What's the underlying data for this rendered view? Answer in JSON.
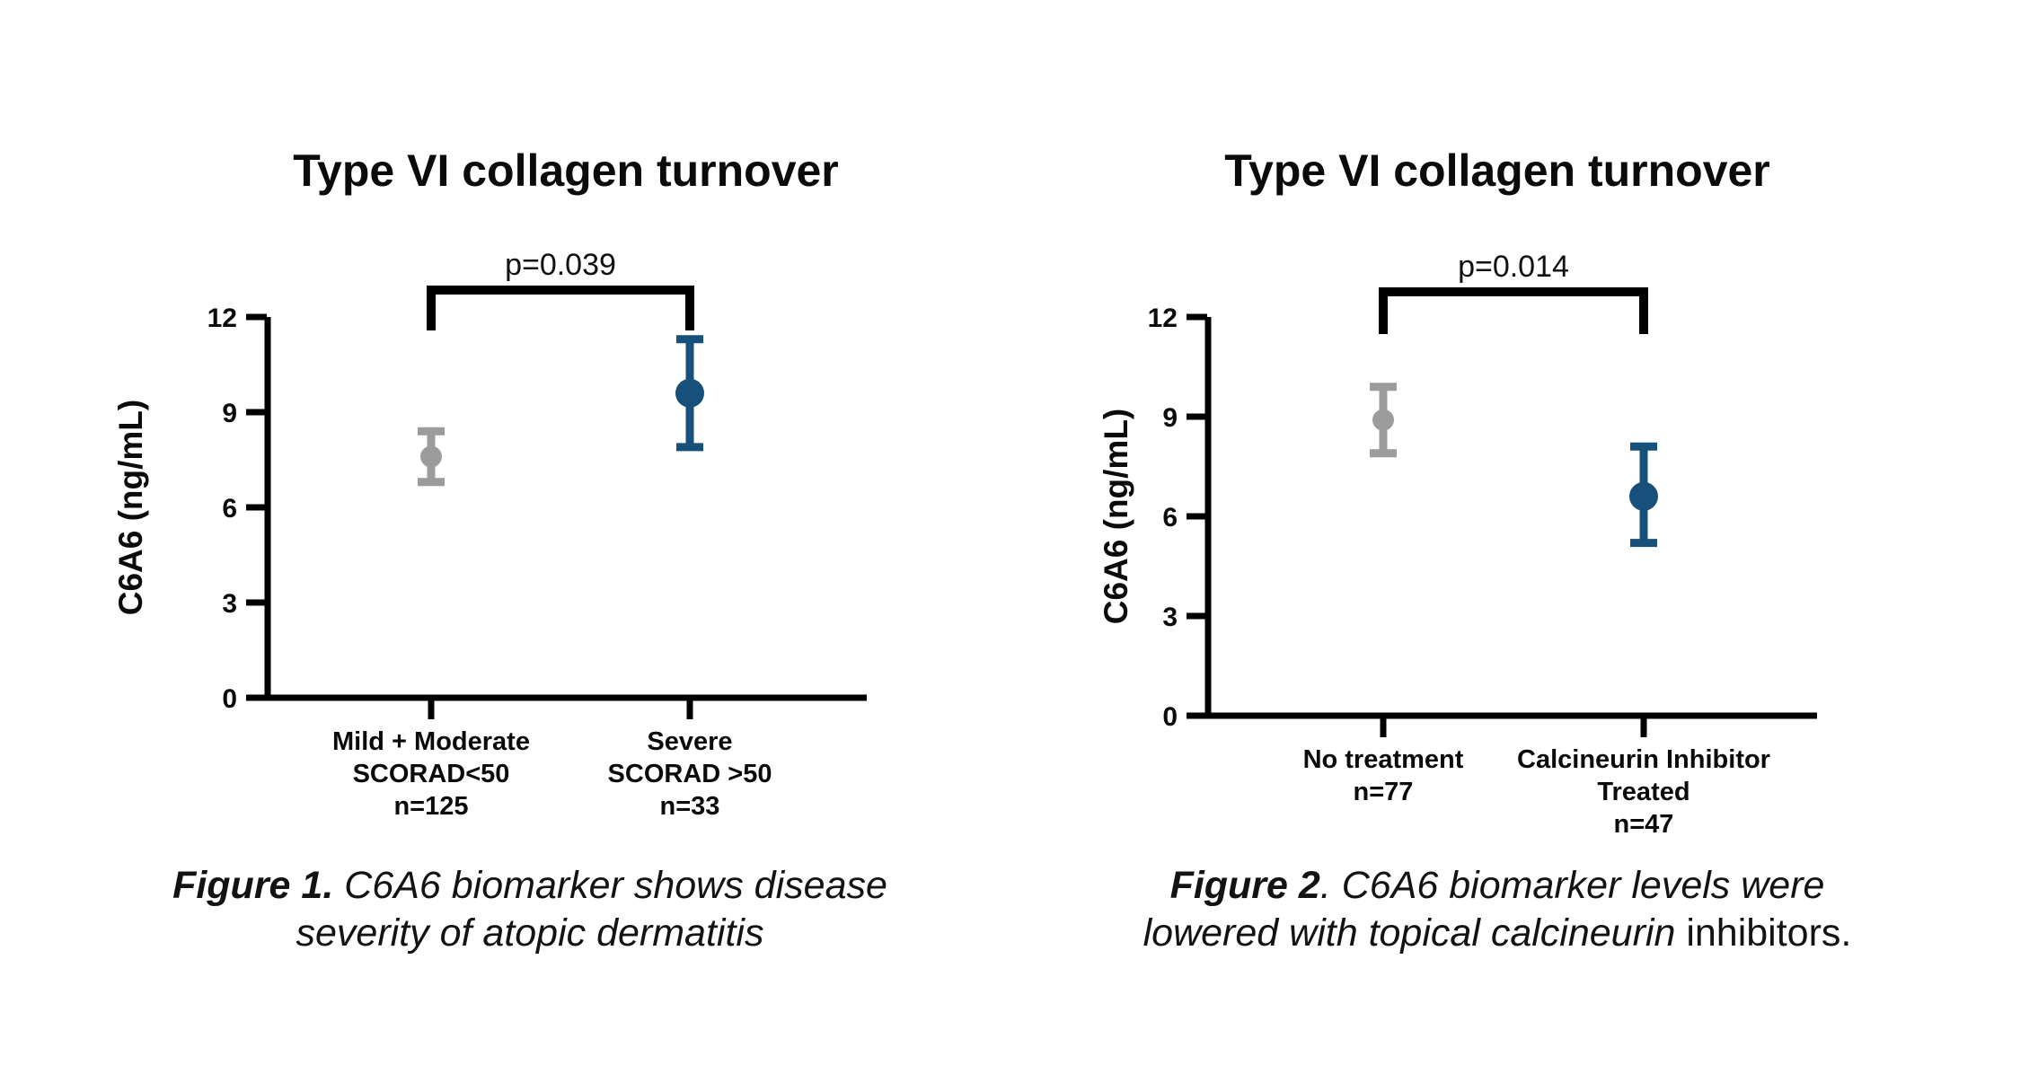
{
  "page": {
    "background_color": "#ffffff",
    "axis_color": "#000000",
    "gray_marker_color": "#9c9c9c",
    "blue_marker_color": "#17507a"
  },
  "chart_data": [
    {
      "type": "scatter",
      "title": "Type VI collagen turnover",
      "xlabel": "",
      "ylabel": "C6A6 (ng/mL)",
      "ylim": [
        0,
        12
      ],
      "yticks": [
        0,
        3,
        6,
        9,
        12
      ],
      "grid": false,
      "legend": "none",
      "categories": [
        "Mild + Moderate SCORAD<50 n=125",
        "Severe SCORAD >50 n=33"
      ],
      "significance": {
        "label": "p=0.039",
        "between_groups": [
          0,
          1
        ]
      },
      "points": [
        {
          "label_lines": [
            "Mild + Moderate",
            "SCORAD<50",
            "n=125"
          ],
          "mean": 7.6,
          "err_low": 6.8,
          "err_high": 8.4,
          "color": "#9c9c9c",
          "marker_radius": 12
        },
        {
          "label_lines": [
            "Severe",
            "SCORAD >50",
            "n=33"
          ],
          "mean": 9.6,
          "err_low": 7.9,
          "err_high": 11.3,
          "color": "#17507a",
          "marker_radius": 16
        }
      ]
    },
    {
      "type": "scatter",
      "title": "Type VI collagen turnover",
      "xlabel": "",
      "ylabel": "C6A6 (ng/mL)",
      "ylim": [
        0,
        12
      ],
      "yticks": [
        0,
        3,
        6,
        9,
        12
      ],
      "grid": false,
      "legend": "none",
      "categories": [
        "No treatment n=77",
        "Calcineurin Inhibitor Treated n=47"
      ],
      "significance": {
        "label": "p=0.014",
        "between_groups": [
          0,
          1
        ]
      },
      "points": [
        {
          "label_lines": [
            "No treatment",
            "n=77"
          ],
          "mean": 8.9,
          "err_low": 7.9,
          "err_high": 9.9,
          "color": "#9c9c9c",
          "marker_radius": 12
        },
        {
          "label_lines": [
            "Calcineurin Inhibitor",
            "Treated",
            "n=47"
          ],
          "mean": 6.6,
          "err_low": 5.2,
          "err_high": 8.1,
          "color": "#17507a",
          "marker_radius": 16
        }
      ]
    }
  ],
  "captions": [
    {
      "line1_bold": "Figure 1.",
      "line1_italic": " C6A6 biomarker shows disease",
      "line1_regular": "",
      "line2_bold": "",
      "line2_italic": "severity of atopic dermatitis",
      "line2_regular": ""
    },
    {
      "line1_bold": "Figure 2",
      "line1_italic": ". C6A6 biomarker levels were",
      "line1_regular": "",
      "line2_bold": "",
      "line2_italic": "lowered with topical calcineurin",
      "line2_regular": " inhibitors."
    }
  ]
}
